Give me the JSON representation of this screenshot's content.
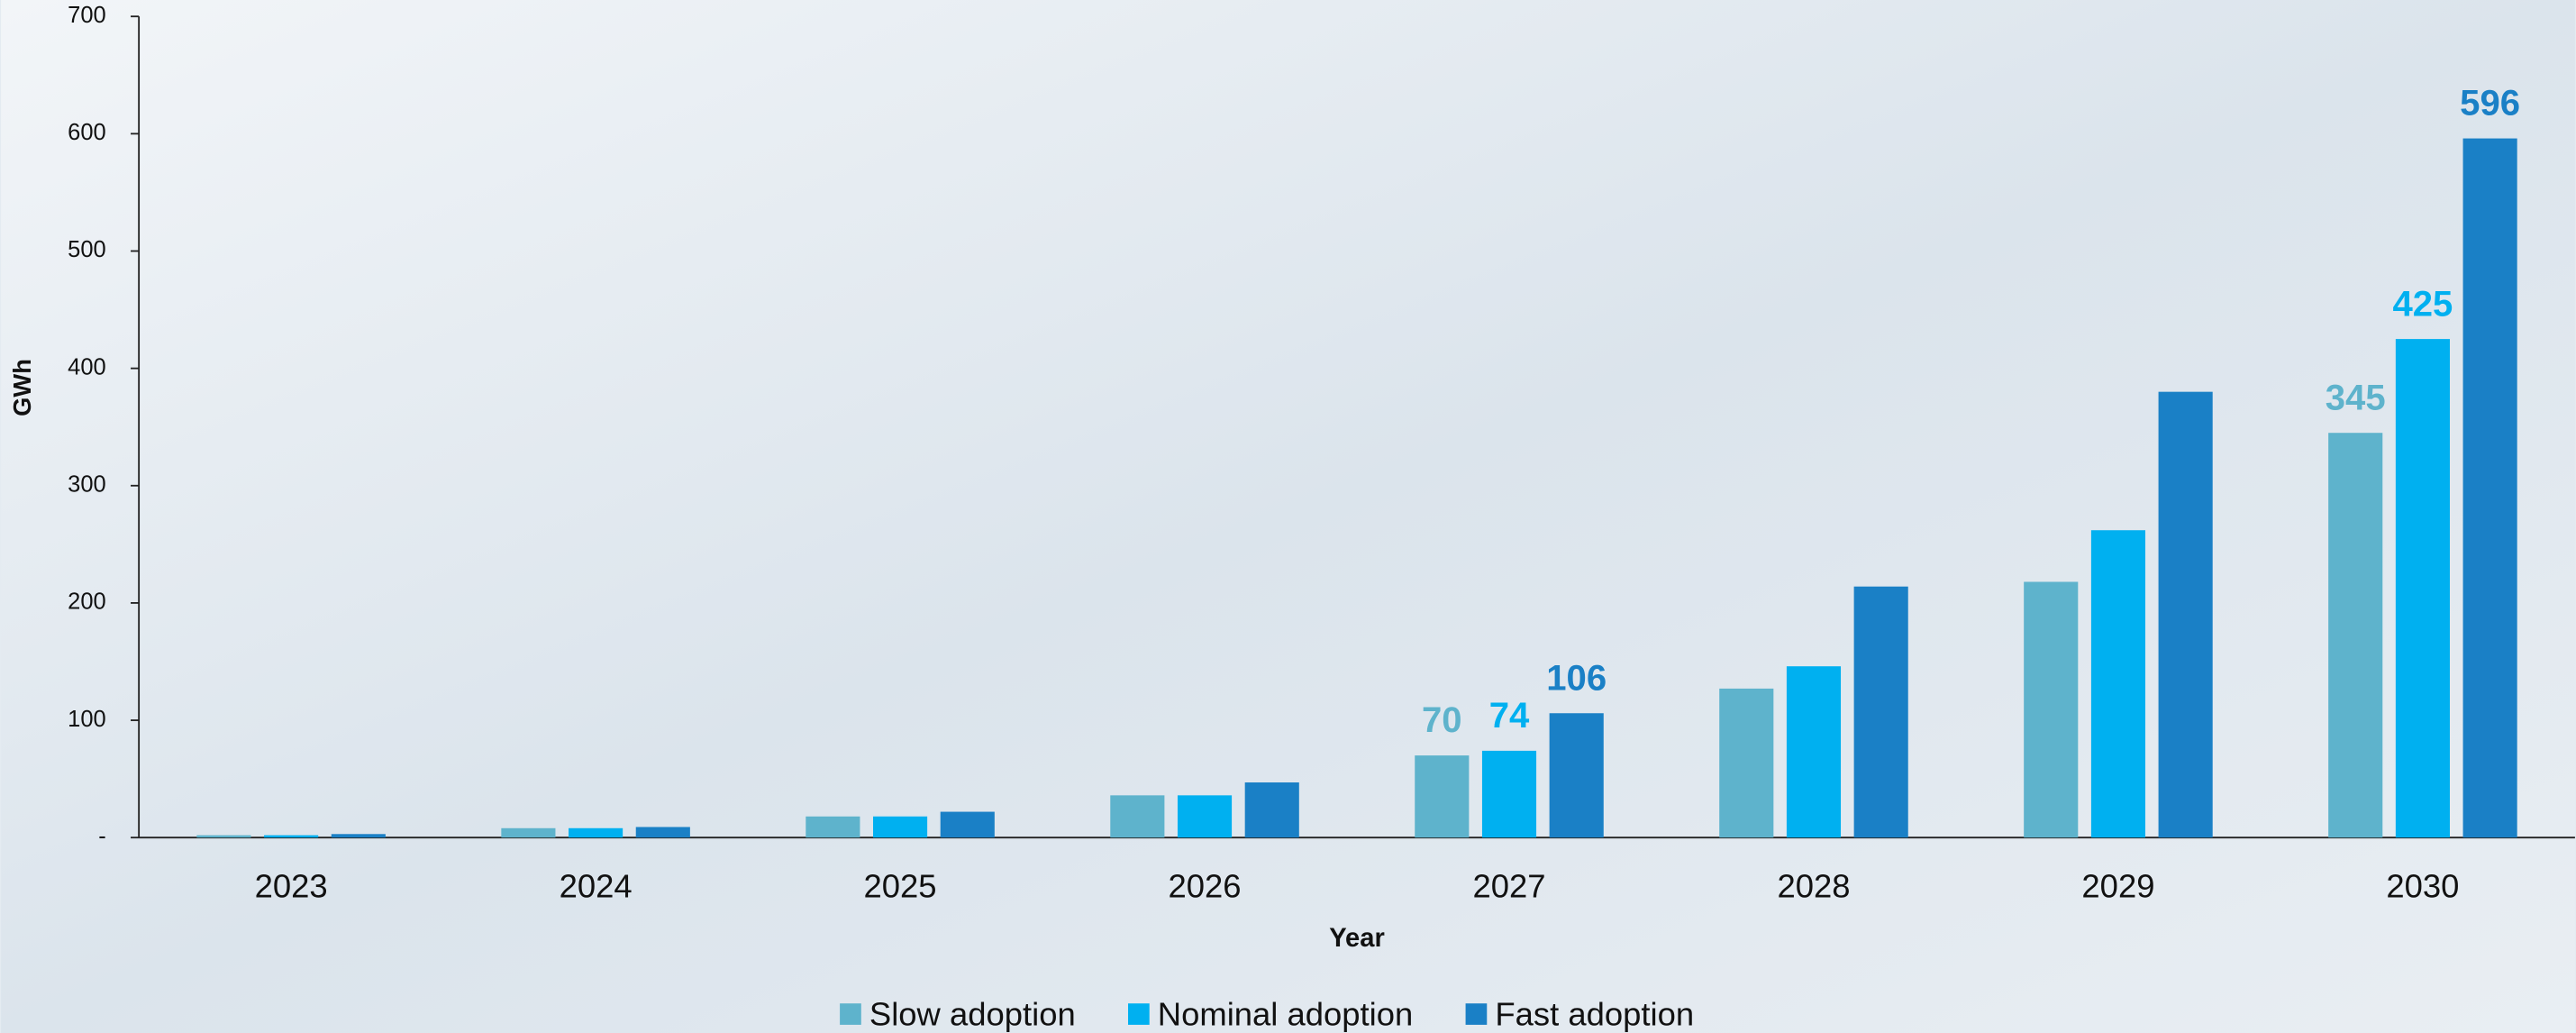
{
  "chart_data": {
    "type": "bar",
    "y_label": "GWh",
    "x_label": "Year",
    "categories": [
      "2023",
      "2024",
      "2025",
      "2026",
      "2027",
      "2028",
      "2029",
      "2030"
    ],
    "series": [
      {
        "name": "Slow adoption",
        "color": "#5eb3cc",
        "values": [
          2,
          8,
          18,
          36,
          70,
          127,
          218,
          345
        ],
        "value_labels": [
          null,
          null,
          null,
          null,
          "70",
          null,
          null,
          "345"
        ]
      },
      {
        "name": "Nominal adoption",
        "color": "#00b0f0",
        "values": [
          2,
          8,
          18,
          36,
          74,
          146,
          262,
          425
        ],
        "value_labels": [
          null,
          null,
          null,
          null,
          "74",
          null,
          null,
          "425"
        ]
      },
      {
        "name": "Fast adoption",
        "color": "#1a80c6",
        "values": [
          3,
          9,
          22,
          47,
          106,
          214,
          380,
          596
        ],
        "value_labels": [
          null,
          null,
          null,
          null,
          "106",
          null,
          null,
          "596"
        ]
      }
    ],
    "ylim": [
      0,
      700
    ],
    "yticks": [
      {
        "value": 0,
        "label": "-"
      },
      100,
      200,
      300,
      400,
      500,
      600,
      700
    ],
    "grid": false,
    "legend": "bottom"
  }
}
